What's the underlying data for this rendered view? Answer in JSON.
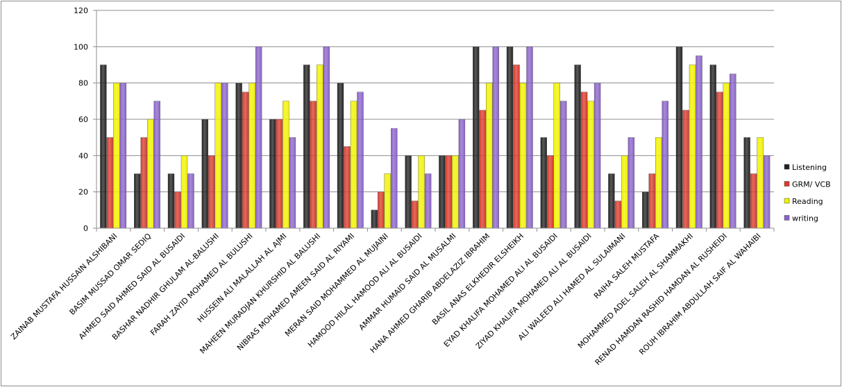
{
  "chart_data": {
    "type": "bar",
    "title": "",
    "xlabel": "",
    "ylabel": "",
    "ylim": [
      0,
      120
    ],
    "yticks": [
      0,
      20,
      40,
      60,
      80,
      100,
      120
    ],
    "grid": true,
    "legend_position": "right",
    "categories": [
      "ZAINAB MUSTAFA HUSSAIN ALSHIBANI",
      "BASIM MUSSAD OMAR SEDIQ",
      "AHMED SAID AHMED  SAID AL BUSAIDI",
      "BASHAR NADHIR GHULAM AL-BALUSHI",
      "FARAH ZAYID MOHAMED AL BULUSHI",
      "HUSSEIN ALI MALALLAH AL AJMI",
      "MAHEEN MURADJAN KHURSHID  AL BALUSHI",
      "NIBRAS MOHAMED AMEEN SAID AL RIYAMI",
      "MERAN SAID MOHAMMED  AL MUJAINI",
      "HAMOOD HILAL HAMOOD ALI  AL BUSAIDI",
      "AMMAR HUMAID  SAID AL MUSALMI",
      "HANA AHMED GHARIB ABDELAZIZ IBRAHIM",
      "BASIL ANAS ELKHEDIR  ELSHEIKH",
      "EYAD KHALIFA MOHAMED ALI AL BUSAIDI",
      "ZIYAD KHALIFA MOHAMED ALI AL BUSAIDI",
      "ALI WALEED ALI HAMED  AL SULAIMANI",
      "RAIHA SALEH MUSTAFA",
      "MOHAMMED ADEL SALEH AL SHAMMAKHI",
      "RENAD HAMDAN RASHID HAMDAN AL RUSHEIDI",
      "ROUH IBRAHIM  ABDULLAH SAIF AL WAHAIBI"
    ],
    "series": [
      {
        "name": "Listening",
        "color": "#222222",
        "values": [
          90,
          30,
          30,
          60,
          80,
          60,
          90,
          80,
          10,
          40,
          40,
          100,
          100,
          50,
          90,
          30,
          20,
          100,
          90,
          50
        ]
      },
      {
        "name": "GRM/ VCB",
        "color": "#d83a2c",
        "values": [
          50,
          50,
          20,
          40,
          75,
          60,
          70,
          45,
          20,
          15,
          40,
          65,
          90,
          40,
          75,
          15,
          30,
          65,
          75,
          30
        ]
      },
      {
        "name": "Reading",
        "color": "#f2f200",
        "values": [
          80,
          60,
          40,
          80,
          80,
          70,
          90,
          70,
          30,
          40,
          40,
          80,
          80,
          80,
          70,
          40,
          50,
          90,
          80,
          50
        ]
      },
      {
        "name": "writing",
        "color": "#8a63c8",
        "values": [
          80,
          70,
          30,
          80,
          100,
          50,
          100,
          75,
          55,
          30,
          60,
          100,
          100,
          70,
          80,
          50,
          70,
          95,
          85,
          40
        ]
      }
    ]
  }
}
